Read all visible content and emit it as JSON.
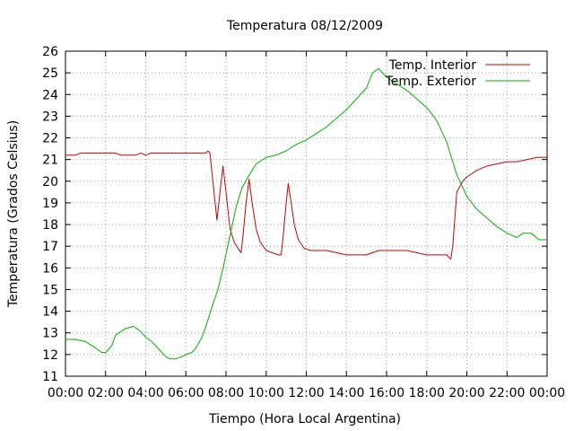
{
  "chart_data": {
    "type": "line",
    "title": "Temperatura 08/12/2009",
    "xlabel": "Tiempo (Hora Local Argentina)",
    "ylabel": "Temperatura (Grados Celsius)",
    "xlim": [
      0,
      24
    ],
    "ylim": [
      11,
      26
    ],
    "grid": true,
    "legend_position": "top-right",
    "x_tick_labels": [
      "00:00",
      "02:00",
      "04:00",
      "06:00",
      "08:00",
      "10:00",
      "12:00",
      "14:00",
      "16:00",
      "18:00",
      "20:00",
      "22:00",
      "00:00"
    ],
    "y_ticks": [
      11,
      12,
      13,
      14,
      15,
      16,
      17,
      18,
      19,
      20,
      21,
      22,
      23,
      24,
      25,
      26
    ],
    "series": [
      {
        "name": "Temp. Interior",
        "color": "#cc0000",
        "points": [
          [
            0.0,
            21.2
          ],
          [
            0.5,
            21.2
          ],
          [
            0.75,
            21.3
          ],
          [
            1.0,
            21.3
          ],
          [
            1.5,
            21.3
          ],
          [
            2.0,
            21.3
          ],
          [
            2.5,
            21.3
          ],
          [
            2.75,
            21.2
          ],
          [
            3.0,
            21.2
          ],
          [
            3.5,
            21.2
          ],
          [
            3.75,
            21.3
          ],
          [
            4.0,
            21.2
          ],
          [
            4.25,
            21.3
          ],
          [
            5.0,
            21.3
          ],
          [
            6.0,
            21.3
          ],
          [
            7.0,
            21.3
          ],
          [
            7.1,
            21.4
          ],
          [
            7.2,
            21.3
          ],
          [
            7.4,
            19.5
          ],
          [
            7.55,
            18.2
          ],
          [
            7.7,
            19.5
          ],
          [
            7.85,
            20.7
          ],
          [
            8.0,
            19.5
          ],
          [
            8.2,
            17.8
          ],
          [
            8.4,
            17.2
          ],
          [
            8.6,
            16.9
          ],
          [
            8.75,
            16.7
          ],
          [
            8.85,
            17.5
          ],
          [
            9.0,
            19.0
          ],
          [
            9.15,
            20.1
          ],
          [
            9.3,
            19.0
          ],
          [
            9.5,
            17.8
          ],
          [
            9.7,
            17.2
          ],
          [
            10.0,
            16.8
          ],
          [
            10.3,
            16.7
          ],
          [
            10.6,
            16.6
          ],
          [
            10.75,
            16.6
          ],
          [
            10.85,
            17.5
          ],
          [
            11.0,
            19.0
          ],
          [
            11.1,
            19.9
          ],
          [
            11.25,
            19.0
          ],
          [
            11.4,
            18.0
          ],
          [
            11.6,
            17.3
          ],
          [
            11.9,
            16.9
          ],
          [
            12.2,
            16.8
          ],
          [
            13.0,
            16.8
          ],
          [
            13.5,
            16.7
          ],
          [
            14.0,
            16.6
          ],
          [
            15.0,
            16.6
          ],
          [
            15.3,
            16.7
          ],
          [
            15.6,
            16.8
          ],
          [
            16.0,
            16.8
          ],
          [
            16.5,
            16.8
          ],
          [
            17.0,
            16.8
          ],
          [
            17.5,
            16.7
          ],
          [
            18.0,
            16.6
          ],
          [
            18.5,
            16.6
          ],
          [
            19.0,
            16.6
          ],
          [
            19.2,
            16.4
          ],
          [
            19.3,
            17.0
          ],
          [
            19.5,
            19.5
          ],
          [
            19.8,
            20.0
          ],
          [
            20.0,
            20.2
          ],
          [
            20.5,
            20.5
          ],
          [
            21.0,
            20.7
          ],
          [
            21.5,
            20.8
          ],
          [
            22.0,
            20.9
          ],
          [
            22.5,
            20.9
          ],
          [
            23.0,
            21.0
          ],
          [
            23.5,
            21.1
          ],
          [
            24.0,
            21.1
          ]
        ]
      },
      {
        "name": "Temp. Exterior",
        "color": "#00b000",
        "points": [
          [
            0.0,
            12.7
          ],
          [
            0.5,
            12.7
          ],
          [
            1.0,
            12.6
          ],
          [
            1.5,
            12.3
          ],
          [
            1.8,
            12.1
          ],
          [
            2.0,
            12.1
          ],
          [
            2.3,
            12.4
          ],
          [
            2.5,
            12.9
          ],
          [
            3.0,
            13.2
          ],
          [
            3.4,
            13.3
          ],
          [
            3.7,
            13.1
          ],
          [
            4.0,
            12.8
          ],
          [
            4.3,
            12.6
          ],
          [
            4.7,
            12.2
          ],
          [
            5.0,
            11.9
          ],
          [
            5.2,
            11.8
          ],
          [
            5.5,
            11.8
          ],
          [
            5.8,
            11.9
          ],
          [
            6.0,
            12.0
          ],
          [
            6.3,
            12.1
          ],
          [
            6.5,
            12.3
          ],
          [
            6.8,
            12.8
          ],
          [
            7.0,
            13.3
          ],
          [
            7.3,
            14.2
          ],
          [
            7.6,
            15.0
          ],
          [
            7.9,
            16.2
          ],
          [
            8.2,
            17.5
          ],
          [
            8.5,
            18.8
          ],
          [
            8.8,
            19.7
          ],
          [
            9.1,
            20.2
          ],
          [
            9.5,
            20.8
          ],
          [
            10.0,
            21.1
          ],
          [
            10.5,
            21.2
          ],
          [
            11.0,
            21.4
          ],
          [
            11.5,
            21.7
          ],
          [
            12.0,
            21.9
          ],
          [
            12.5,
            22.2
          ],
          [
            13.0,
            22.5
          ],
          [
            13.5,
            22.9
          ],
          [
            14.0,
            23.3
          ],
          [
            14.5,
            23.8
          ],
          [
            15.0,
            24.3
          ],
          [
            15.3,
            25.0
          ],
          [
            15.6,
            25.2
          ],
          [
            16.0,
            24.8
          ],
          [
            16.5,
            24.5
          ],
          [
            17.0,
            24.2
          ],
          [
            17.5,
            23.8
          ],
          [
            18.0,
            23.4
          ],
          [
            18.5,
            22.8
          ],
          [
            19.0,
            21.8
          ],
          [
            19.5,
            20.3
          ],
          [
            20.0,
            19.3
          ],
          [
            20.5,
            18.7
          ],
          [
            21.0,
            18.3
          ],
          [
            21.5,
            17.9
          ],
          [
            22.0,
            17.6
          ],
          [
            22.5,
            17.4
          ],
          [
            22.8,
            17.6
          ],
          [
            23.2,
            17.6
          ],
          [
            23.6,
            17.3
          ],
          [
            24.0,
            17.3
          ]
        ]
      }
    ]
  }
}
